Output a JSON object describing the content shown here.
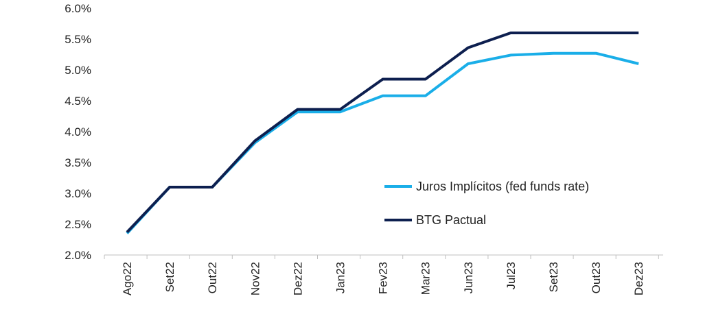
{
  "chart_data": {
    "type": "line",
    "title": "",
    "xlabel": "",
    "ylabel": "",
    "categories": [
      "Ago22",
      "Set22",
      "Out22",
      "Nov22",
      "Dez22",
      "Jan23",
      "Fev23",
      "Mar23",
      "Jun23",
      "Jul23",
      "Set23",
      "Out23",
      "Dez23"
    ],
    "ylim": [
      0.02,
      0.06
    ],
    "yticks": [
      0.02,
      0.025,
      0.03,
      0.035,
      0.04,
      0.045,
      0.05,
      0.055,
      0.06
    ],
    "ytick_labels": [
      "2.0%",
      "2.5%",
      "3.0%",
      "3.5%",
      "4.0%",
      "4.5%",
      "5.0%",
      "5.5%",
      "6.0%"
    ],
    "grid": false,
    "legend_position": "center-right",
    "series": [
      {
        "name": "Juros Implícitos (fed funds rate)",
        "color": "#1aaee8",
        "values": [
          0.0235,
          0.031,
          0.031,
          0.0382,
          0.0432,
          0.0432,
          0.0458,
          0.0458,
          0.051,
          0.0524,
          0.0527,
          0.0527,
          0.051
        ]
      },
      {
        "name": "BTG Pactual",
        "color": "#0d1f4f",
        "values": [
          0.0237,
          0.031,
          0.031,
          0.0385,
          0.0436,
          0.0436,
          0.0485,
          0.0485,
          0.0536,
          0.056,
          0.056,
          0.056,
          0.056
        ]
      }
    ]
  }
}
